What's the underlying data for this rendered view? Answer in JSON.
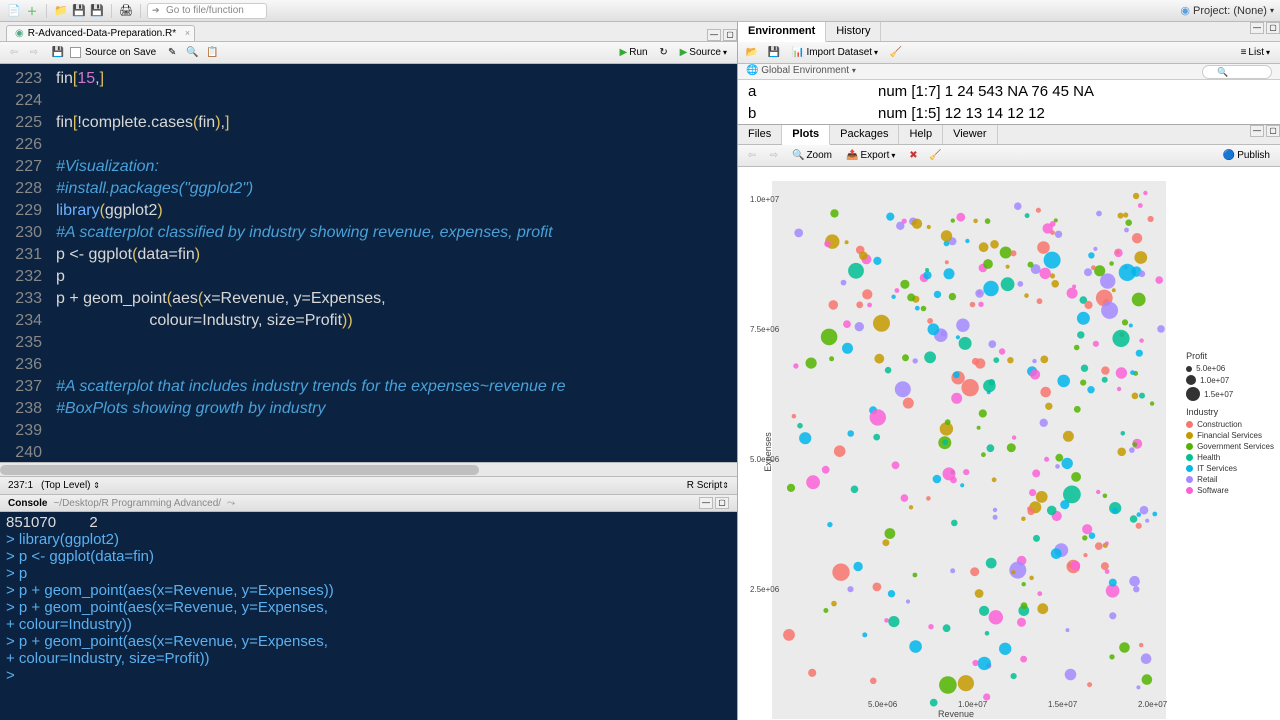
{
  "topbar": {
    "goto_placeholder": "Go to file/function",
    "project_label": "Project: (None)"
  },
  "editor": {
    "filename": "R-Advanced-Data-Preparation.R*",
    "source_on_save": "Source on Save",
    "run": "Run",
    "source": "Source",
    "status_pos": "237:1",
    "status_scope": "(Top Level)",
    "status_lang": "R Script",
    "lines": [
      {
        "n": "223",
        "seg": [
          {
            "c": "c-fn",
            "t": "fin"
          },
          {
            "c": "c-par",
            "t": "["
          },
          {
            "c": "c-num",
            "t": "15"
          },
          {
            "c": "c-fn",
            "t": ","
          },
          {
            "c": "c-par",
            "t": "]"
          }
        ]
      },
      {
        "n": "224",
        "seg": []
      },
      {
        "n": "225",
        "seg": [
          {
            "c": "c-fn",
            "t": "fin"
          },
          {
            "c": "c-par",
            "t": "["
          },
          {
            "c": "c-fn",
            "t": "!complete.cases"
          },
          {
            "c": "c-par",
            "t": "("
          },
          {
            "c": "c-fn",
            "t": "fin"
          },
          {
            "c": "c-par",
            "t": ")"
          },
          {
            "c": "c-fn",
            "t": ","
          },
          {
            "c": "c-par",
            "t": "]"
          }
        ]
      },
      {
        "n": "226",
        "seg": []
      },
      {
        "n": "227",
        "seg": [
          {
            "c": "c-com",
            "t": "#Visualization:"
          }
        ]
      },
      {
        "n": "228",
        "seg": [
          {
            "c": "c-com",
            "t": "#install.packages(\"ggplot2\")"
          }
        ]
      },
      {
        "n": "229",
        "seg": [
          {
            "c": "c-kw",
            "t": "library"
          },
          {
            "c": "c-par",
            "t": "("
          },
          {
            "c": "c-fn",
            "t": "ggplot2"
          },
          {
            "c": "c-par",
            "t": ")"
          }
        ]
      },
      {
        "n": "230",
        "seg": [
          {
            "c": "c-com",
            "t": "#A scatterplot classified by industry showing revenue, expenses, profit"
          }
        ]
      },
      {
        "n": "231",
        "seg": [
          {
            "c": "c-fn",
            "t": "p <- ggplot"
          },
          {
            "c": "c-par",
            "t": "("
          },
          {
            "c": "c-fn",
            "t": "data=fin"
          },
          {
            "c": "c-par",
            "t": ")"
          }
        ]
      },
      {
        "n": "232",
        "seg": [
          {
            "c": "c-fn",
            "t": "p"
          }
        ]
      },
      {
        "n": "233",
        "seg": [
          {
            "c": "c-fn",
            "t": "p + geom_point"
          },
          {
            "c": "c-par",
            "t": "("
          },
          {
            "c": "c-fn",
            "t": "aes"
          },
          {
            "c": "c-par",
            "t": "("
          },
          {
            "c": "c-fn",
            "t": "x=Revenue, y=Expenses,"
          }
        ]
      },
      {
        "n": "234",
        "seg": [
          {
            "c": "c-fn",
            "t": "                     colour=Industry, size=Profit"
          },
          {
            "c": "c-par",
            "t": "))"
          }
        ]
      },
      {
        "n": "235",
        "seg": []
      },
      {
        "n": "236",
        "seg": []
      },
      {
        "n": "237",
        "seg": [
          {
            "c": "c-com",
            "t": "#A scatterplot that includes industry trends for the expenses~revenue re"
          }
        ]
      },
      {
        "n": "238",
        "seg": [
          {
            "c": "c-com",
            "t": "#BoxPlots showing growth by industry"
          }
        ]
      },
      {
        "n": "239",
        "seg": []
      },
      {
        "n": "240",
        "seg": []
      }
    ]
  },
  "console": {
    "title": "Console",
    "path": "~/Desktop/R Programming Advanced/",
    "lines": [
      "851070        2",
      "> library(ggplot2)",
      "> p <- ggplot(data=fin)",
      "> p",
      "> p + geom_point(aes(x=Revenue, y=Expenses))",
      "> p + geom_point(aes(x=Revenue, y=Expenses,",
      "+ colour=Industry))",
      "> p + geom_point(aes(x=Revenue, y=Expenses,",
      "+ colour=Industry, size=Profit))",
      "> "
    ]
  },
  "env": {
    "tabs": [
      "Environment",
      "History"
    ],
    "import": "Import Dataset",
    "list": "List",
    "scope": "Global Environment",
    "rows": [
      {
        "name": "a",
        "val": "num [1:7] 1 24 543 NA 76 45 NA"
      },
      {
        "name": "b",
        "val": "num [1:5] 12 13 14 12 12"
      }
    ]
  },
  "rb": {
    "tabs": [
      "Files",
      "Plots",
      "Packages",
      "Help",
      "Viewer"
    ],
    "active": "Plots",
    "zoom": "Zoom",
    "export": "Export",
    "publish": "Publish"
  },
  "plot": {
    "xlabel": "Revenue",
    "ylabel": "Expenses",
    "bg": "#ebebeb",
    "yticks": [
      {
        "v": "1.0e+07",
        "y": 18
      },
      {
        "v": "7.5e+06",
        "y": 148
      },
      {
        "v": "5.0e+06",
        "y": 278
      },
      {
        "v": "2.5e+06",
        "y": 408
      }
    ],
    "xticks": [
      {
        "v": "5.0e+06",
        "x": 108
      },
      {
        "v": "1.0e+07",
        "x": 198
      },
      {
        "v": "1.5e+07",
        "x": 288
      },
      {
        "v": "2.0e+07",
        "x": 378
      }
    ],
    "legend_profit": {
      "title": "Profit",
      "items": [
        {
          "label": "5.0e+06",
          "r": 3
        },
        {
          "label": "1.0e+07",
          "r": 5
        },
        {
          "label": "1.5e+07",
          "r": 7
        }
      ]
    },
    "legend_industry": {
      "title": "Industry",
      "items": [
        {
          "label": "Construction",
          "color": "#f8766d"
        },
        {
          "label": "Financial Services",
          "color": "#c49a00"
        },
        {
          "label": "Government Services",
          "color": "#53b400"
        },
        {
          "label": "Health",
          "color": "#00c094"
        },
        {
          "label": "IT Services",
          "color": "#00b6eb"
        },
        {
          "label": "Retail",
          "color": "#a58aff"
        },
        {
          "label": "Software",
          "color": "#fb61d7"
        }
      ]
    },
    "n_points": 320,
    "point_seed": 42
  }
}
